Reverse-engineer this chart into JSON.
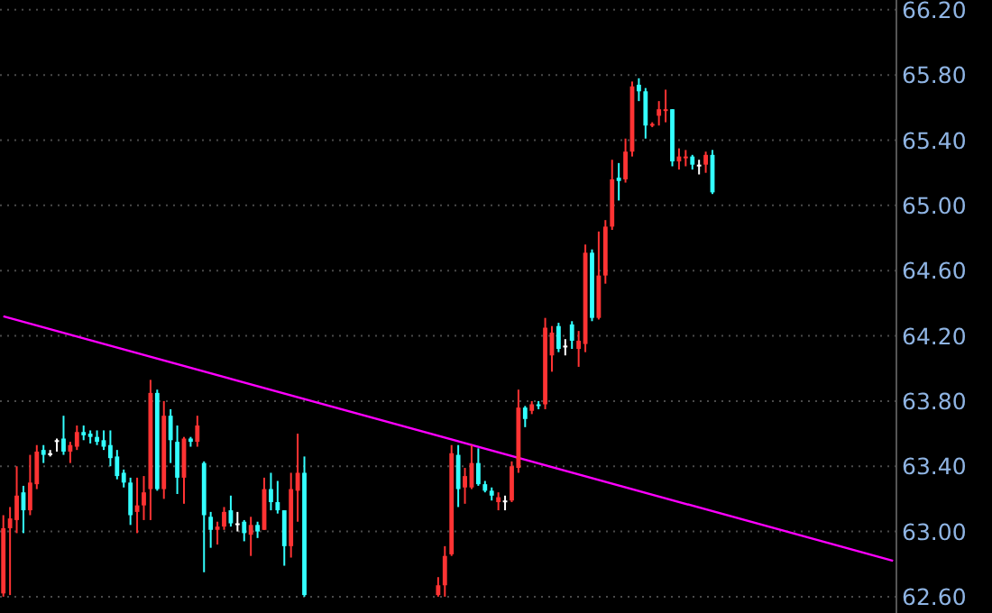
{
  "chart_data": {
    "type": "candlestick",
    "tick_labels": "y",
    "grid": "y",
    "categories": [
      null,
      null,
      null,
      null,
      null,
      null,
      null,
      null,
      null,
      null,
      null,
      null,
      null,
      null,
      null,
      null,
      null,
      null,
      null,
      null,
      null,
      null,
      null,
      null,
      null,
      null,
      null,
      null,
      null,
      null,
      null,
      null,
      null,
      null,
      null,
      null,
      null,
      null,
      null,
      null,
      null,
      null,
      null,
      null,
      null,
      null,
      null,
      null,
      null,
      null,
      null,
      null,
      null,
      null,
      null,
      null,
      null,
      null,
      null,
      null,
      null,
      null,
      null,
      null,
      null,
      null,
      null,
      null,
      null,
      null,
      null,
      null,
      null,
      null,
      null,
      null,
      null,
      null,
      null,
      null,
      null,
      null,
      null,
      null,
      null,
      null,
      null,
      null,
      null,
      null,
      null,
      null,
      null,
      null,
      null,
      null,
      null,
      null,
      null,
      null,
      null,
      null,
      null,
      null,
      null,
      null,
      null,
      null,
      null,
      null,
      null,
      null,
      null,
      null,
      null,
      null,
      null,
      null,
      null,
      null,
      null,
      null,
      null,
      null,
      null,
      null,
      null,
      null,
      null,
      null,
      null,
      null,
      null,
      null
    ],
    "ylim": [
      62.5,
      66.26
    ],
    "yticks": [
      {
        "value": 62.6,
        "label": "62.60"
      },
      {
        "value": 63,
        "label": "63.00"
      },
      {
        "value": 63.4,
        "label": "63.40"
      },
      {
        "value": 63.8,
        "label": "63.80"
      },
      {
        "value": 64.2,
        "label": "64.20"
      },
      {
        "value": 64.6,
        "label": "64.60"
      },
      {
        "value": 65,
        "label": "65.00"
      },
      {
        "value": 65.4,
        "label": "65.40"
      },
      {
        "value": 65.8,
        "label": "65.80"
      },
      {
        "value": 66.2,
        "label": "66.20"
      }
    ],
    "series": [
      {
        "ohlc": [
          [
            62.62,
            63.1,
            62.6,
            63.02
          ],
          [
            63.02,
            63.15,
            62.61,
            63.08
          ],
          [
            63.07,
            63.4,
            62.99,
            63.22
          ],
          [
            63.24,
            63.28,
            62.99,
            63.13
          ],
          [
            63.13,
            63.47,
            63.1,
            63.3
          ],
          [
            63.29,
            63.53,
            63.26,
            63.49
          ],
          [
            63.5,
            63.53,
            63.42,
            63.47
          ],
          [
            63.48,
            63.5,
            63.46,
            63.48
          ],
          [
            63.56,
            63.57,
            63.49,
            63.56
          ],
          [
            63.57,
            63.71,
            63.47,
            63.49
          ],
          [
            63.49,
            63.55,
            63.42,
            63.53
          ],
          [
            63.52,
            63.65,
            63.5,
            63.61
          ],
          [
            63.61,
            63.65,
            63.56,
            63.59
          ],
          [
            63.6,
            63.62,
            63.54,
            63.58
          ],
          [
            63.58,
            63.62,
            63.53,
            63.55
          ],
          [
            63.56,
            63.62,
            63.5,
            63.52
          ],
          [
            63.53,
            63.62,
            63.4,
            63.45
          ],
          [
            63.46,
            63.5,
            63.32,
            63.34
          ],
          [
            63.36,
            63.38,
            63.27,
            63.3
          ],
          [
            63.3,
            63.33,
            63.04,
            63.1
          ],
          [
            63.12,
            63.33,
            62.99,
            63.16
          ],
          [
            63.16,
            63.34,
            63.07,
            63.24
          ],
          [
            63.26,
            63.93,
            63.07,
            63.85
          ],
          [
            63.85,
            63.87,
            63.25,
            63.26
          ],
          [
            63.26,
            63.8,
            63.2,
            63.71
          ],
          [
            63.71,
            63.75,
            63.42,
            63.56
          ],
          [
            63.55,
            63.65,
            63.23,
            63.33
          ],
          [
            63.33,
            63.58,
            63.17,
            63.57
          ],
          [
            63.57,
            63.58,
            63.52,
            63.55
          ],
          [
            63.55,
            63.71,
            63.52,
            63.65
          ],
          [
            63.42,
            63.43,
            62.75,
            63.1
          ],
          [
            63.09,
            63.12,
            62.9,
            63.01
          ],
          [
            63.01,
            63.06,
            62.92,
            63.03
          ],
          [
            63.03,
            63.15,
            63.01,
            63.12
          ],
          [
            63.13,
            63.22,
            63.03,
            63.05
          ],
          [
            63.05,
            63.12,
            63.0,
            63.05
          ],
          [
            63.06,
            63.07,
            62.94,
            62.99
          ],
          [
            62.98,
            63.09,
            62.85,
            63.04
          ],
          [
            63.04,
            63.06,
            62.96,
            63.0
          ],
          [
            63.01,
            63.33,
            63.01,
            63.26
          ],
          [
            63.26,
            63.36,
            63.13,
            63.18
          ],
          [
            63.18,
            63.31,
            63.11,
            63.13
          ],
          [
            63.13,
            63.13,
            62.79,
            62.91
          ],
          [
            62.91,
            63.36,
            62.84,
            63.26
          ],
          [
            63.25,
            63.6,
            63.06,
            63.36
          ],
          [
            63.36,
            63.46,
            62.6,
            62.61
          ],
          null,
          null,
          null,
          null,
          null,
          null,
          null,
          null,
          null,
          null,
          null,
          null,
          null,
          null,
          null,
          null,
          null,
          null,
          null,
          [
            62.61,
            62.72,
            62.6,
            62.67
          ],
          [
            62.67,
            62.91,
            62.6,
            62.85
          ],
          [
            62.86,
            63.53,
            62.85,
            63.48
          ],
          [
            63.47,
            63.53,
            63.15,
            63.26
          ],
          [
            63.27,
            63.39,
            63.17,
            63.34
          ],
          [
            63.27,
            63.53,
            63.26,
            63.42
          ],
          [
            63.42,
            63.51,
            63.28,
            63.29
          ],
          [
            63.29,
            63.31,
            63.24,
            63.25
          ],
          [
            63.25,
            63.27,
            63.19,
            63.22
          ],
          [
            63.18,
            63.24,
            63.13,
            63.21
          ],
          [
            63.19,
            63.22,
            63.13,
            63.19
          ],
          [
            63.19,
            63.43,
            63.18,
            63.4
          ],
          [
            63.39,
            63.87,
            63.36,
            63.76
          ],
          [
            63.76,
            63.77,
            63.64,
            63.69
          ],
          [
            63.74,
            63.8,
            63.72,
            63.78
          ],
          [
            63.78,
            63.8,
            63.75,
            63.77
          ],
          [
            63.78,
            64.31,
            63.75,
            64.25
          ],
          [
            64.08,
            64.26,
            63.98,
            64.22
          ],
          [
            64.26,
            64.28,
            64.1,
            64.12
          ],
          [
            64.14,
            64.18,
            64.08,
            64.14
          ],
          [
            64.27,
            64.29,
            64.12,
            64.17
          ],
          [
            64.12,
            64.23,
            64.01,
            64.17
          ],
          [
            64.15,
            64.76,
            64.1,
            64.71
          ],
          [
            64.71,
            64.73,
            64.29,
            64.31
          ],
          [
            64.31,
            64.84,
            64.3,
            64.57
          ],
          [
            64.57,
            64.91,
            64.52,
            64.87
          ],
          [
            64.87,
            65.28,
            64.85,
            65.16
          ],
          [
            65.17,
            65.26,
            65.03,
            65.15
          ],
          [
            65.16,
            65.41,
            65.14,
            65.33
          ],
          [
            65.33,
            65.76,
            65.3,
            65.73
          ],
          [
            65.74,
            65.78,
            65.64,
            65.7
          ],
          [
            65.7,
            65.72,
            65.41,
            65.49
          ],
          [
            65.49,
            65.51,
            65.48,
            65.5
          ],
          [
            65.55,
            65.64,
            65.49,
            65.59
          ],
          [
            65.58,
            65.71,
            65.51,
            65.59
          ],
          [
            65.59,
            65.59,
            65.24,
            65.27
          ],
          [
            65.27,
            65.35,
            65.22,
            65.3
          ],
          [
            65.29,
            65.34,
            65.24,
            65.3
          ],
          [
            65.3,
            65.31,
            65.22,
            65.25
          ],
          [
            65.25,
            65.28,
            65.19,
            65.25
          ],
          [
            65.25,
            65.33,
            65.2,
            65.31
          ],
          [
            65.31,
            65.34,
            65.07,
            65.08
          ],
          null,
          null,
          null,
          null,
          null,
          null,
          null,
          null,
          null,
          null,
          null,
          null,
          null,
          null,
          null,
          null,
          null,
          null,
          null,
          null,
          null,
          null,
          null,
          null,
          null,
          null,
          null
        ],
        "colors": [
          "#ff3333",
          "#ff3333",
          "#ff3333",
          "#33ffff",
          "#ff3333",
          "#ff3333",
          "#33ffff",
          "#ffffff",
          "#ffffff",
          "#33ffff",
          "#ff3333",
          "#ff3333",
          "#33ffff",
          "#33ffff",
          "#33ffff",
          "#33ffff",
          "#33ffff",
          "#33ffff",
          "#33ffff",
          "#33ffff",
          "#ff3333",
          "#ff3333",
          "#ff3333",
          "#33ffff",
          "#ff3333",
          "#33ffff",
          "#33ffff",
          "#ff3333",
          "#33ffff",
          "#ff3333",
          "#33ffff",
          "#33ffff",
          "#ff3333",
          "#ff3333",
          "#33ffff",
          "#ffffff",
          "#33ffff",
          "#ff3333",
          "#33ffff",
          "#ff3333",
          "#33ffff",
          "#33ffff",
          "#33ffff",
          "#ff3333",
          "#ff3333",
          "#33ffff",
          null,
          null,
          null,
          null,
          null,
          null,
          null,
          null,
          null,
          null,
          null,
          null,
          null,
          null,
          null,
          null,
          null,
          null,
          null,
          "#ff3333",
          "#ff3333",
          "#ff3333",
          "#33ffff",
          "#ff3333",
          "#ff3333",
          "#33ffff",
          "#33ffff",
          "#33ffff",
          "#ff3333",
          "#ffffff",
          "#ff3333",
          "#ff3333",
          "#33ffff",
          "#ff3333",
          "#33ffff",
          "#ff3333",
          "#ff3333",
          "#33ffff",
          "#ffffff",
          "#33ffff",
          "#ff3333",
          "#ff3333",
          "#33ffff",
          "#ff3333",
          "#ff3333",
          "#ff3333",
          "#33ffff",
          "#ff3333",
          "#ff3333",
          "#33ffff",
          "#33ffff",
          "#ff3333",
          "#ff3333",
          "#ff3333",
          "#33ffff",
          "#ff3333",
          "#ff3333",
          "#33ffff",
          "#ffffff",
          "#ff3333",
          "#33ffff",
          null,
          null,
          null,
          null,
          null,
          null,
          null,
          null,
          null,
          null,
          null,
          null,
          null,
          null,
          null,
          null,
          null,
          null,
          null,
          null,
          null,
          null,
          null,
          null,
          null,
          null,
          null
        ]
      },
      {
        "type": "line",
        "color": "#ff00ff",
        "values": [
          64.32,
          null,
          null,
          null,
          null,
          null,
          null,
          null,
          null,
          null,
          null,
          null,
          null,
          null,
          null,
          null,
          null,
          null,
          null,
          null,
          null,
          null,
          null,
          null,
          null,
          null,
          null,
          null,
          null,
          null,
          null,
          null,
          null,
          null,
          null,
          null,
          null,
          null,
          null,
          null,
          null,
          null,
          null,
          null,
          null,
          null,
          null,
          null,
          null,
          null,
          null,
          null,
          null,
          null,
          null,
          null,
          null,
          null,
          null,
          null,
          null,
          null,
          null,
          null,
          null,
          null,
          null,
          null,
          null,
          null,
          null,
          null,
          null,
          null,
          null,
          null,
          null,
          null,
          null,
          null,
          null,
          null,
          null,
          null,
          null,
          null,
          null,
          null,
          null,
          null,
          null,
          null,
          null,
          null,
          null,
          null,
          null,
          null,
          null,
          null,
          null,
          null,
          null,
          null,
          null,
          null,
          null,
          null,
          null,
          null,
          null,
          null,
          null,
          null,
          null,
          null,
          null,
          null,
          null,
          null,
          null,
          null,
          null,
          null,
          null,
          null,
          null,
          null,
          null,
          null,
          null,
          null,
          null,
          62.82
        ]
      }
    ]
  }
}
